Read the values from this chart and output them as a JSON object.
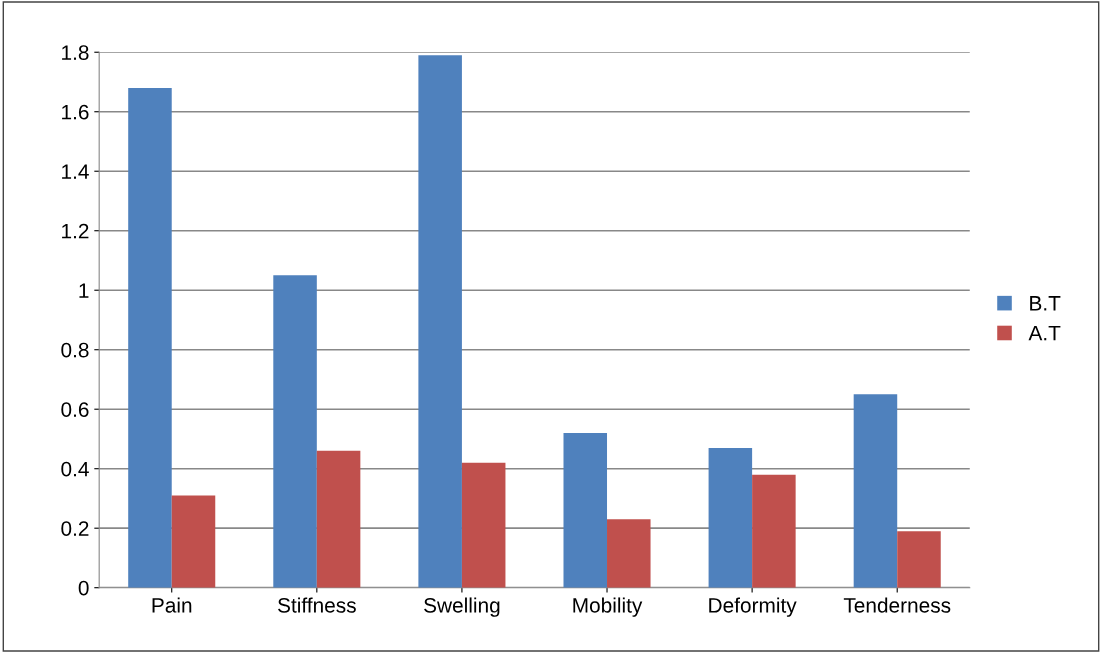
{
  "chart_data": {
    "type": "bar",
    "categories": [
      "Pain",
      "Stiffness",
      "Swelling",
      "Mobility",
      "Deformity",
      "Tenderness"
    ],
    "series": [
      {
        "name": "B.T",
        "color": "#4f81bd",
        "values": [
          1.68,
          1.05,
          1.79,
          0.52,
          0.47,
          0.65
        ]
      },
      {
        "name": "A.T",
        "color": "#c0504d",
        "values": [
          0.31,
          0.46,
          0.42,
          0.23,
          0.38,
          0.19
        ]
      }
    ],
    "ylim": [
      0,
      1.8
    ],
    "yticks": [
      0,
      0.2,
      0.4,
      0.6,
      0.8,
      1,
      1.2,
      1.4,
      1.6,
      1.8
    ],
    "grid": "y",
    "legend": "right"
  }
}
